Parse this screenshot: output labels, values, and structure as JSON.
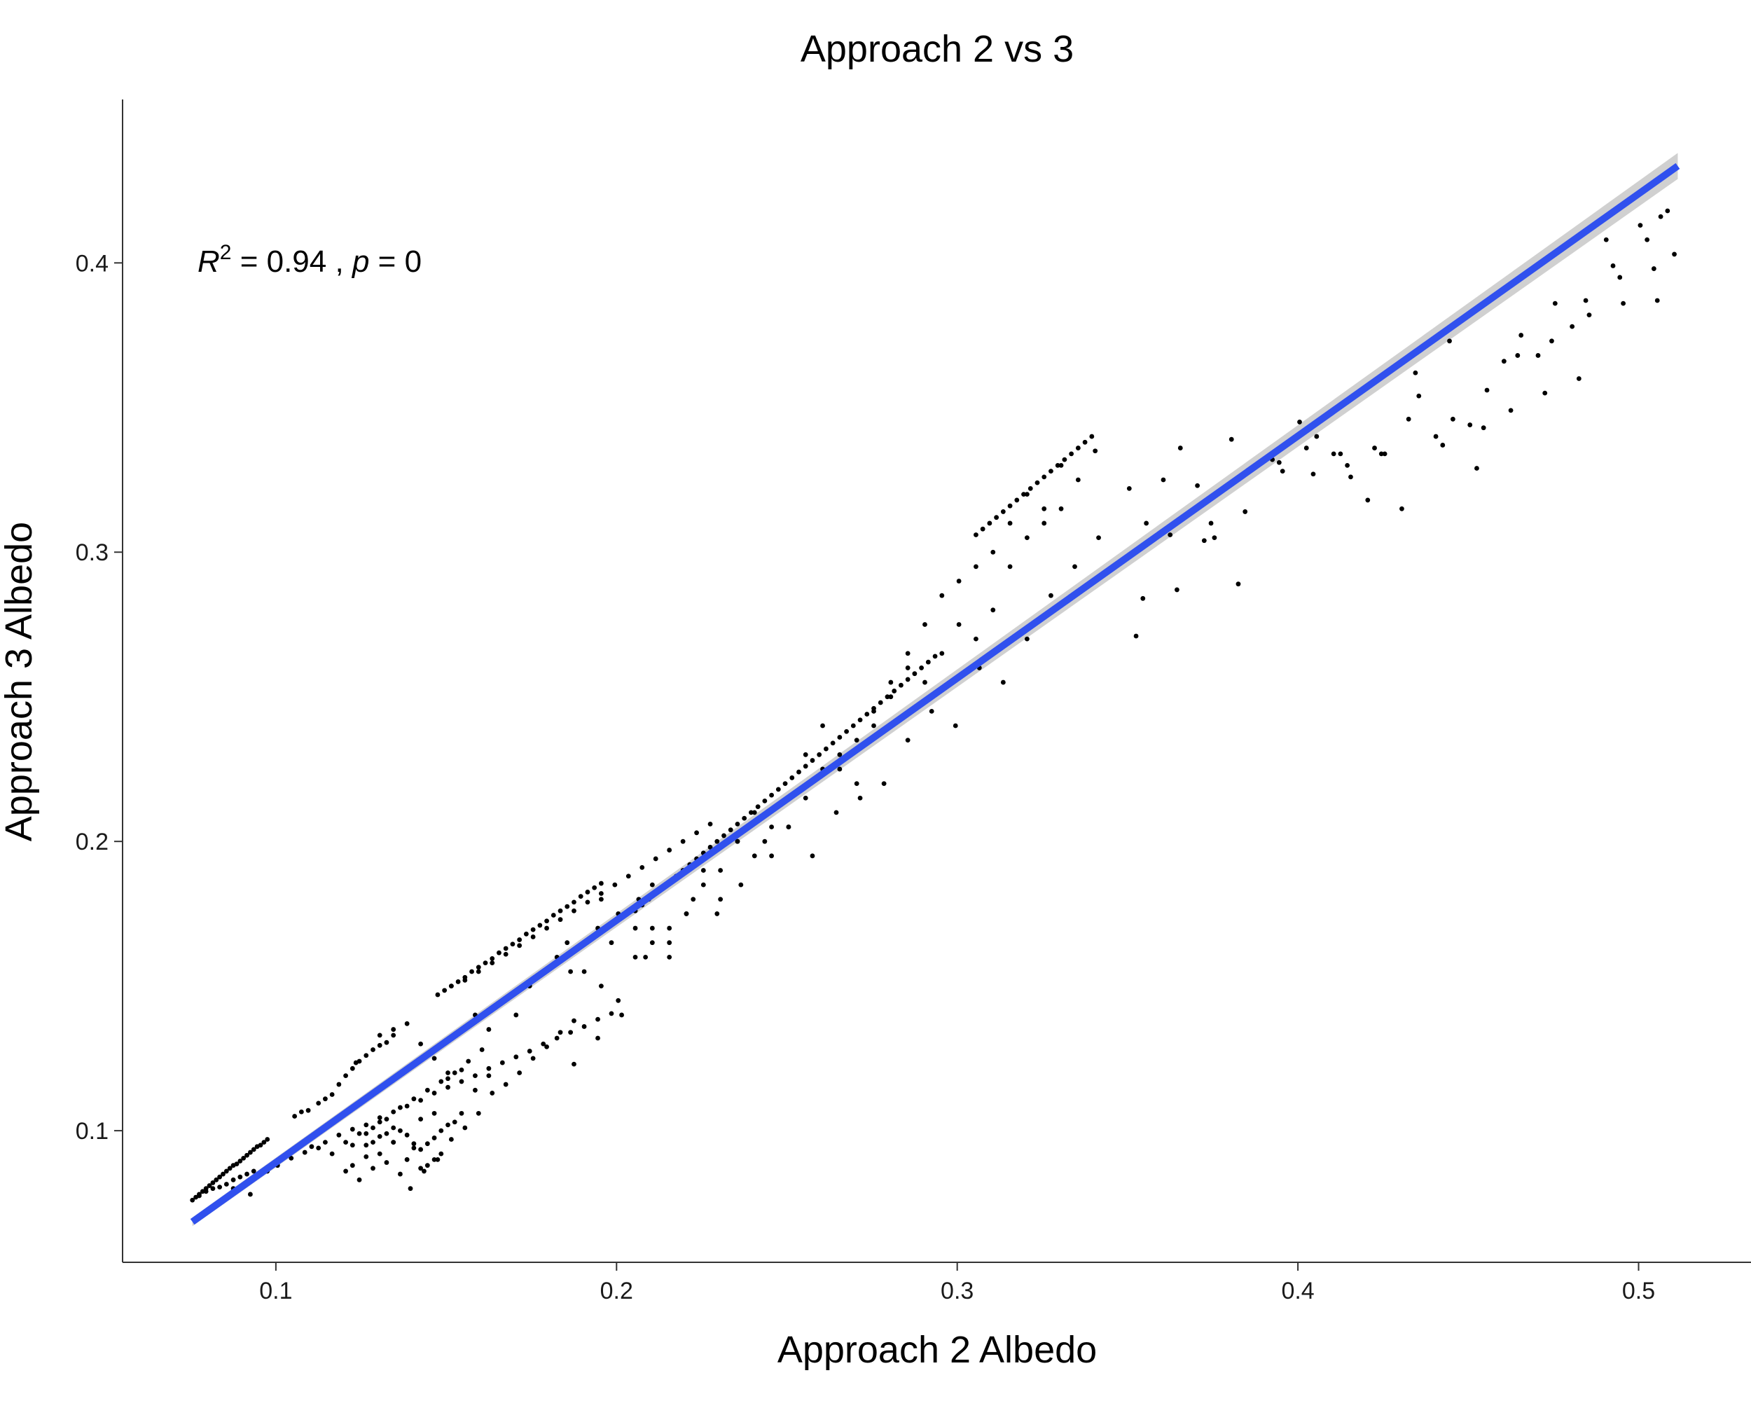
{
  "chart_data": {
    "type": "scatter",
    "title": "Approach 2 vs 3",
    "xlabel": "Approach 2 Albedo",
    "ylabel": "Approach 3 Albedo",
    "xlim": [
      0.055,
      0.533
    ],
    "ylim": [
      0.0545,
      0.4565
    ],
    "xticks": [
      0.1,
      0.2,
      0.3,
      0.4,
      0.5
    ],
    "xtick_labels": [
      "0.1",
      "0.2",
      "0.3",
      "0.4",
      "0.5"
    ],
    "yticks": [
      0.1,
      0.2,
      0.3,
      0.4
    ],
    "ytick_labels": [
      "0.1",
      "0.2",
      "0.3",
      "0.4"
    ],
    "grid": false,
    "annotation": {
      "r_label": "R",
      "r_sup": "2",
      "r_value": " = 0.94 , ",
      "p_label": "p",
      "p_value": " = 0"
    },
    "fit": {
      "x": [
        0.0755,
        0.5115
      ],
      "y": [
        0.0685,
        0.4335
      ],
      "band_halfwidth": [
        0.0015,
        0.0045
      ],
      "color": "#3050ee"
    },
    "series": [
      {
        "x": [
          0.0755,
          0.0765,
          0.0775,
          0.0785,
          0.0795,
          0.0805,
          0.0815,
          0.0825,
          0.0835,
          0.0845,
          0.0855,
          0.0865,
          0.0875,
          0.0885,
          0.0895,
          0.0905,
          0.0915,
          0.0925,
          0.0935,
          0.0945,
          0.0955,
          0.0965,
          0.0975,
          0.0775,
          0.0795,
          0.0815,
          0.0835,
          0.0855,
          0.0875,
          0.0895,
          0.0915,
          0.0935,
          0.0875,
          0.0925,
          0.0975,
          0.1005,
          0.1045,
          0.1085,
          0.1105,
          0.1145,
          0.1185,
          0.1225,
          0.1265,
          0.1305,
          0.1345,
          0.1385,
          0.1425,
          0.1465,
          0.1505,
          0.1545,
          0.1585,
          0.1625,
          0.1665,
          0.1705,
          0.1745,
          0.1785,
          0.1825,
          0.1865,
          0.1905,
          0.1945,
          0.1985,
          0.1055,
          0.1075,
          0.1095,
          0.1125,
          0.1145,
          0.1165,
          0.1185,
          0.1205,
          0.1225,
          0.1235,
          0.1245,
          0.1265,
          0.1285,
          0.1305,
          0.1325,
          0.1345,
          0.1265,
          0.1285,
          0.1305,
          0.1325,
          0.1345,
          0.1365,
          0.1385,
          0.1405,
          0.1425,
          0.1445,
          0.1465,
          0.1485,
          0.1505,
          0.1525,
          0.1545,
          0.1205,
          0.1225,
          0.1245,
          0.1265,
          0.1285,
          0.1305,
          0.1325,
          0.1345,
          0.1365,
          0.1385,
          0.1405,
          0.1425,
          0.1445,
          0.1465,
          0.1485,
          0.1225,
          0.1265,
          0.1305,
          0.1345,
          0.1385,
          0.1425,
          0.1465,
          0.1505,
          0.1545,
          0.1585,
          0.1625,
          0.1475,
          0.1495,
          0.1515,
          0.1535,
          0.1555,
          0.1575,
          0.1595,
          0.1615,
          0.1635,
          0.1655,
          0.1675,
          0.1695,
          0.1715,
          0.1735,
          0.1755,
          0.1775,
          0.1795,
          0.1815,
          0.1835,
          0.1855,
          0.1875,
          0.1895,
          0.1915,
          0.1935,
          0.1955,
          0.1515,
          0.1555,
          0.1595,
          0.1635,
          0.1675,
          0.1715,
          0.1755,
          0.1795,
          0.1835,
          0.1875,
          0.1915,
          0.1955,
          0.1995,
          0.2035,
          0.2075,
          0.2115,
          0.2155,
          0.2195,
          0.2235,
          0.2275,
          0.2055,
          0.2075,
          0.2095,
          0.2115,
          0.2135,
          0.2155,
          0.2175,
          0.2195,
          0.2215,
          0.2235,
          0.2255,
          0.2275,
          0.2295,
          0.2315,
          0.2335,
          0.2355,
          0.2375,
          0.2395,
          0.2415,
          0.2435,
          0.2455,
          0.2475,
          0.2495,
          0.2515,
          0.2535,
          0.2555,
          0.2575,
          0.2595,
          0.2615,
          0.2635,
          0.2655,
          0.2675,
          0.2695,
          0.2715,
          0.2735,
          0.2755,
          0.2775,
          0.2795,
          0.2815,
          0.2835,
          0.2855,
          0.2875,
          0.2895,
          0.2915,
          0.2935,
          0.3055,
          0.3075,
          0.3095,
          0.3115,
          0.3135,
          0.3155,
          0.3175,
          0.3195,
          0.3215,
          0.3235,
          0.3255,
          0.3275,
          0.3295,
          0.3315,
          0.3335,
          0.3355,
          0.3375,
          0.3395,
          0.1955,
          0.2005,
          0.2055,
          0.2105,
          0.2155,
          0.2205,
          0.2255,
          0.2305,
          0.2355,
          0.2405,
          0.2455,
          0.2505,
          0.2555,
          0.2605,
          0.2655,
          0.2705,
          0.2755,
          0.2805,
          0.2855,
          0.2905,
          0.2955,
          0.3005,
          0.3055,
          0.3105,
          0.3155,
          0.3205,
          0.3255,
          0.3305,
          0.3355,
          0.3405,
          0.1855,
          0.1905,
          0.1955,
          0.2005,
          0.2055,
          0.2105,
          0.2155,
          0.2205,
          0.2255,
          0.2305,
          0.2355,
          0.2405,
          0.2455,
          0.2505,
          0.2555,
          0.2605,
          0.2655,
          0.2705,
          0.2755,
          0.2805,
          0.2855,
          0.2905,
          0.2955,
          0.3005,
          0.3055,
          0.3105,
          0.3155,
          0.3205,
          0.3255,
          0.3305,
          0.1875,
          0.1945,
          0.2015,
          0.2085,
          0.2155,
          0.2225,
          0.2295,
          0.2365,
          0.2435,
          0.2505,
          0.2575,
          0.2645,
          0.2715,
          0.2785,
          0.2855,
          0.2925,
          0.2995,
          0.3065,
          0.3135,
          0.3205,
          0.3275,
          0.3345,
          0.3415,
          0.3505,
          0.3555,
          0.3605,
          0.3655,
          0.3705,
          0.3755,
          0.3805,
          0.3855,
          0.3905,
          0.3955,
          0.4005,
          0.4055,
          0.4105,
          0.4155,
          0.4205,
          0.4255,
          0.4305,
          0.4355,
          0.4405,
          0.4455,
          0.4505,
          0.4555,
          0.4605,
          0.4655,
          0.4705,
          0.4755,
          0.4805,
          0.4855,
          0.4905,
          0.4955,
          0.5005,
          0.5055,
          0.5105,
          0.3525,
          0.3625,
          0.3725,
          0.3825,
          0.3925,
          0.4025,
          0.4125,
          0.4225,
          0.4325,
          0.4425,
          0.4525,
          0.4625,
          0.4725,
          0.4825,
          0.4925,
          0.5025,
          0.5065,
          0.5085,
          0.3545,
          0.3645,
          0.3745,
          0.3845,
          0.3945,
          0.4045,
          0.4145,
          0.4245,
          0.4345,
          0.4445,
          0.4545,
          0.4645,
          0.4745,
          0.4845,
          0.4945,
          0.5045,
          0.1305,
          0.1345,
          0.1385,
          0.1425,
          0.1465,
          0.1505,
          0.1545,
          0.1585,
          0.1625,
          0.1665,
          0.1705,
          0.1745,
          0.1785,
          0.1825,
          0.1865,
          0.1905,
          0.1945,
          0.1985,
          0.2025,
          0.2065,
          0.2105,
          0.1395,
          0.1435,
          0.1475,
          0.1515,
          0.1555,
          0.1595,
          0.1635,
          0.1675,
          0.1715,
          0.1755,
          0.1795,
          0.1835,
          0.1875,
          0.1125,
          0.1165,
          0.1205,
          0.1245,
          0.1285,
          0.1325,
          0.1365,
          0.1405,
          0.1445,
          0.1485,
          0.1525,
          0.1565,
          0.1605
        ],
        "y": [
          0.076,
          0.077,
          0.078,
          0.079,
          0.08,
          0.081,
          0.082,
          0.083,
          0.084,
          0.085,
          0.086,
          0.087,
          0.088,
          0.0885,
          0.0895,
          0.0905,
          0.0915,
          0.0925,
          0.0935,
          0.0945,
          0.095,
          0.096,
          0.097,
          0.0775,
          0.079,
          0.08,
          0.0805,
          0.0815,
          0.083,
          0.084,
          0.085,
          0.086,
          0.08,
          0.078,
          0.086,
          0.088,
          0.0905,
          0.0925,
          0.0945,
          0.096,
          0.0985,
          0.1005,
          0.102,
          0.1045,
          0.1065,
          0.1085,
          0.1105,
          0.113,
          0.115,
          0.117,
          0.119,
          0.1215,
          0.1235,
          0.1255,
          0.1275,
          0.13,
          0.132,
          0.134,
          0.136,
          0.1385,
          0.1405,
          0.105,
          0.1065,
          0.107,
          0.1095,
          0.111,
          0.1125,
          0.116,
          0.119,
          0.1215,
          0.1235,
          0.124,
          0.126,
          0.128,
          0.1295,
          0.1305,
          0.133,
          0.095,
          0.096,
          0.098,
          0.099,
          0.101,
          0.1,
          0.0985,
          0.0955,
          0.0935,
          0.0955,
          0.0975,
          0.1,
          0.102,
          0.103,
          0.106,
          0.086,
          0.088,
          0.083,
          0.091,
          0.087,
          0.092,
          0.089,
          0.096,
          0.085,
          0.09,
          0.094,
          0.087,
          0.088,
          0.09,
          0.092,
          0.095,
          0.099,
          0.103,
          0.096,
          0.09,
          0.104,
          0.106,
          0.118,
          0.121,
          0.114,
          0.119,
          0.147,
          0.1485,
          0.15,
          0.1515,
          0.153,
          0.155,
          0.1565,
          0.158,
          0.1595,
          0.1615,
          0.163,
          0.1645,
          0.166,
          0.168,
          0.1695,
          0.171,
          0.1725,
          0.1745,
          0.176,
          0.1775,
          0.179,
          0.181,
          0.1825,
          0.184,
          0.1855,
          0.15,
          0.152,
          0.155,
          0.158,
          0.161,
          0.164,
          0.167,
          0.17,
          0.173,
          0.176,
          0.179,
          0.182,
          0.185,
          0.188,
          0.191,
          0.194,
          0.197,
          0.2,
          0.203,
          0.206,
          0.176,
          0.178,
          0.18,
          0.182,
          0.184,
          0.186,
          0.188,
          0.19,
          0.192,
          0.194,
          0.196,
          0.198,
          0.2,
          0.202,
          0.204,
          0.206,
          0.208,
          0.21,
          0.212,
          0.214,
          0.216,
          0.218,
          0.22,
          0.222,
          0.224,
          0.226,
          0.228,
          0.23,
          0.232,
          0.234,
          0.236,
          0.238,
          0.24,
          0.242,
          0.244,
          0.246,
          0.248,
          0.25,
          0.252,
          0.254,
          0.256,
          0.258,
          0.26,
          0.262,
          0.264,
          0.306,
          0.308,
          0.31,
          0.312,
          0.314,
          0.316,
          0.318,
          0.32,
          0.322,
          0.324,
          0.326,
          0.328,
          0.33,
          0.332,
          0.334,
          0.336,
          0.338,
          0.34,
          0.18,
          0.175,
          0.17,
          0.165,
          0.16,
          0.175,
          0.19,
          0.18,
          0.2,
          0.195,
          0.205,
          0.215,
          0.23,
          0.24,
          0.225,
          0.235,
          0.245,
          0.255,
          0.265,
          0.275,
          0.285,
          0.29,
          0.295,
          0.3,
          0.31,
          0.32,
          0.315,
          0.33,
          0.325,
          0.335,
          0.165,
          0.155,
          0.15,
          0.145,
          0.16,
          0.17,
          0.165,
          0.175,
          0.185,
          0.19,
          0.2,
          0.21,
          0.195,
          0.205,
          0.215,
          0.225,
          0.23,
          0.22,
          0.24,
          0.25,
          0.26,
          0.255,
          0.265,
          0.275,
          0.27,
          0.28,
          0.295,
          0.305,
          0.31,
          0.315,
          0.123,
          0.132,
          0.14,
          0.16,
          0.17,
          0.18,
          0.175,
          0.185,
          0.2,
          0.205,
          0.195,
          0.21,
          0.215,
          0.22,
          0.235,
          0.245,
          0.24,
          0.26,
          0.255,
          0.27,
          0.285,
          0.295,
          0.305,
          0.322,
          0.31,
          0.325,
          0.336,
          0.323,
          0.305,
          0.339,
          0.328,
          0.332,
          0.328,
          0.345,
          0.34,
          0.334,
          0.326,
          0.318,
          0.334,
          0.315,
          0.354,
          0.34,
          0.346,
          0.344,
          0.356,
          0.366,
          0.375,
          0.368,
          0.386,
          0.378,
          0.382,
          0.408,
          0.386,
          0.413,
          0.387,
          0.403,
          0.271,
          0.306,
          0.304,
          0.289,
          0.332,
          0.336,
          0.334,
          0.336,
          0.346,
          0.337,
          0.329,
          0.349,
          0.355,
          0.36,
          0.399,
          0.408,
          0.416,
          0.418,
          0.284,
          0.287,
          0.31,
          0.314,
          0.331,
          0.327,
          0.33,
          0.334,
          0.362,
          0.373,
          0.343,
          0.368,
          0.373,
          0.387,
          0.395,
          0.398,
          0.133,
          0.135,
          0.137,
          0.13,
          0.125,
          0.12,
          0.135,
          0.14,
          0.135,
          0.145,
          0.14,
          0.15,
          0.155,
          0.16,
          0.155,
          0.165,
          0.17,
          0.165,
          0.175,
          0.18,
          0.185,
          0.08,
          0.086,
          0.09,
          0.097,
          0.101,
          0.106,
          0.113,
          0.116,
          0.12,
          0.125,
          0.129,
          0.134,
          0.138,
          0.094,
          0.092,
          0.096,
          0.099,
          0.101,
          0.104,
          0.108,
          0.111,
          0.114,
          0.117,
          0.12,
          0.124,
          0.128
        ]
      }
    ]
  }
}
